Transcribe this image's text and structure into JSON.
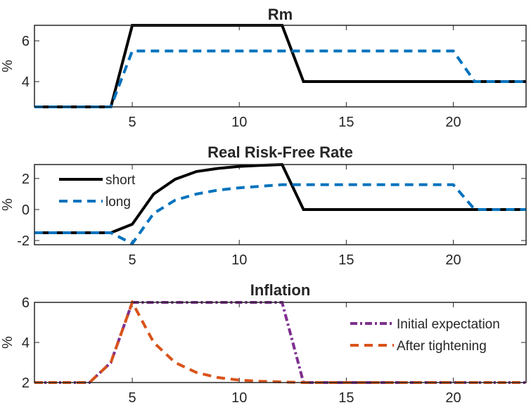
{
  "chart_data": [
    {
      "type": "line",
      "title": "Rm",
      "xlabel": "",
      "ylabel": "%",
      "xlim": [
        0.43,
        23.4
      ],
      "ylim": [
        2.76,
        6.76
      ],
      "xticks": [
        5,
        10,
        15,
        20
      ],
      "yticks": [
        4,
        6
      ],
      "grid": false,
      "legend": null,
      "series": [
        {
          "name": "short",
          "color": "#000000",
          "style": "solid",
          "x": [
            0.43,
            4,
            5,
            12,
            13,
            23.4
          ],
          "y": [
            2.76,
            2.76,
            6.76,
            6.76,
            4,
            4
          ]
        },
        {
          "name": "long",
          "color": "#0072BD",
          "style": "dashed",
          "x": [
            0.43,
            4,
            5,
            20,
            21,
            23.4
          ],
          "y": [
            2.76,
            2.76,
            5.5,
            5.5,
            4,
            4
          ]
        }
      ]
    },
    {
      "type": "line",
      "title": "Real Risk-Free Rate",
      "xlabel": "",
      "ylabel": "%",
      "xlim": [
        0.43,
        23.4
      ],
      "ylim": [
        -2.27,
        2.9
      ],
      "xticks": [
        5,
        10,
        15,
        20
      ],
      "yticks": [
        -2,
        0,
        2
      ],
      "grid": false,
      "legend": {
        "placement": "top-left",
        "entries": [
          "short",
          "long"
        ]
      },
      "series": [
        {
          "name": "short",
          "color": "#000000",
          "style": "solid",
          "x": [
            0.43,
            4,
            5,
            6,
            7,
            8,
            9,
            10,
            11,
            12,
            13,
            23.4
          ],
          "y": [
            -1.5,
            -1.5,
            -0.95,
            1.0,
            1.95,
            2.45,
            2.65,
            2.78,
            2.85,
            2.9,
            0,
            0
          ]
        },
        {
          "name": "long",
          "color": "#0072BD",
          "style": "dashed",
          "x": [
            0.43,
            4,
            5,
            6,
            7,
            8,
            9,
            10,
            11,
            12,
            20,
            21,
            23.4
          ],
          "y": [
            -1.5,
            -1.5,
            -2.2,
            -0.25,
            0.6,
            1.0,
            1.25,
            1.4,
            1.5,
            1.6,
            1.6,
            0,
            0
          ]
        }
      ]
    },
    {
      "type": "line",
      "title": "Inflation",
      "xlabel": "",
      "ylabel": "%",
      "xlim": [
        0.43,
        23.4
      ],
      "ylim": [
        2,
        6
      ],
      "xticks": [
        5,
        10,
        15,
        20
      ],
      "yticks": [
        2,
        4,
        6
      ],
      "grid": false,
      "legend": {
        "placement": "top-right",
        "entries": [
          "Initial expectation",
          "After tightening"
        ]
      },
      "series": [
        {
          "name": "Initial expectation",
          "color": "#7E2F8E",
          "style": "dashdot",
          "x": [
            0.43,
            3,
            4,
            5,
            12,
            13,
            23.4
          ],
          "y": [
            2,
            2,
            3,
            6,
            6,
            2,
            2
          ]
        },
        {
          "name": "After tightening",
          "color": "#D95319",
          "style": "dashed",
          "x": [
            0.43,
            3,
            4,
            5,
            6,
            7,
            8,
            9,
            10,
            11,
            12,
            13,
            23.4
          ],
          "y": [
            2,
            2,
            3,
            6,
            4,
            3,
            2.5,
            2.25,
            2.12,
            2.06,
            2.03,
            2,
            2
          ]
        }
      ]
    }
  ]
}
